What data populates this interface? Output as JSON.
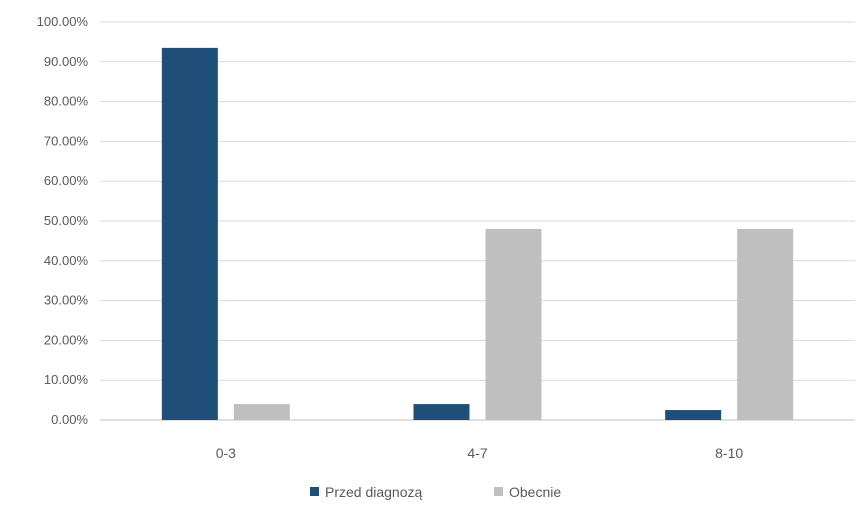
{
  "chart_data": {
    "type": "bar",
    "categories": [
      "0-3",
      "4-7",
      "8-10"
    ],
    "series": [
      {
        "name": "Przed diagnozą",
        "values": [
          93.5,
          4.0,
          2.5
        ],
        "color": "#1F4E79"
      },
      {
        "name": "Obecnie",
        "values": [
          4.0,
          48.0,
          48.0
        ],
        "color": "#BFBFBF"
      }
    ],
    "ylim": [
      0,
      100
    ],
    "yticks": [
      "0.00%",
      "10.00%",
      "20.00%",
      "30.00%",
      "40.00%",
      "50.00%",
      "60.00%",
      "70.00%",
      "80.00%",
      "90.00%",
      "100.00%"
    ],
    "grid": true,
    "legend_position": "bottom"
  }
}
